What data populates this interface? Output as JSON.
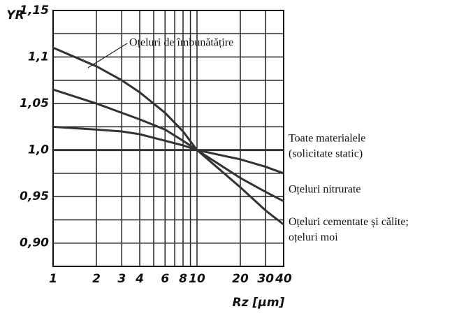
{
  "chart_data": {
    "type": "line",
    "xlabel": "Rz [µm]",
    "ylabel": "YR",
    "xscale": "log",
    "x": [
      1,
      2,
      3,
      4,
      6,
      8,
      10,
      20,
      30,
      40
    ],
    "xlim": [
      1,
      40
    ],
    "xticks": [
      1,
      2,
      3,
      4,
      6,
      8,
      10,
      20,
      30,
      40
    ],
    "x_minor_grid": [
      5,
      7,
      9
    ],
    "ylim": [
      0.875,
      1.15
    ],
    "yticks": [
      {
        "value": 0.9,
        "label": "0,90"
      },
      {
        "value": 0.95,
        "label": "0,95"
      },
      {
        "value": 1.0,
        "label": "1,0"
      },
      {
        "value": 1.05,
        "label": "1,05"
      },
      {
        "value": 1.1,
        "label": "1,1"
      },
      {
        "value": 1.15,
        "label": "1,15"
      }
    ],
    "y_minor_grid": [
      0.875,
      0.925,
      0.975,
      1.025,
      1.075,
      1.125
    ],
    "grid": true,
    "series": [
      {
        "name": [
          "Oțeluri de îmbunătățire"
        ],
        "color": "#333333",
        "values": [
          1.11,
          1.09,
          1.075,
          1.062,
          1.04,
          1.02,
          1.0,
          0.99,
          0.982,
          0.975
        ]
      },
      {
        "name": [
          "Toate materialele",
          "(solicitate static)"
        ],
        "color": "#333333",
        "values": [
          1.0,
          1.0,
          1.0,
          1.0,
          1.0,
          1.0,
          1.0,
          1.0,
          1.0,
          1.0
        ]
      },
      {
        "name": [
          "Oțeluri nitrurate"
        ],
        "color": "#333333",
        "values": [
          1.065,
          1.05,
          1.04,
          1.033,
          1.022,
          1.01,
          1.0,
          0.97,
          0.955,
          0.945
        ]
      },
      {
        "name": [
          "Oțeluri cementate și călite;",
          "oțeluri moi"
        ],
        "color": "#333333",
        "values": [
          1.025,
          1.022,
          1.02,
          1.017,
          1.01,
          1.005,
          1.0,
          0.96,
          0.935,
          0.92
        ]
      }
    ]
  }
}
